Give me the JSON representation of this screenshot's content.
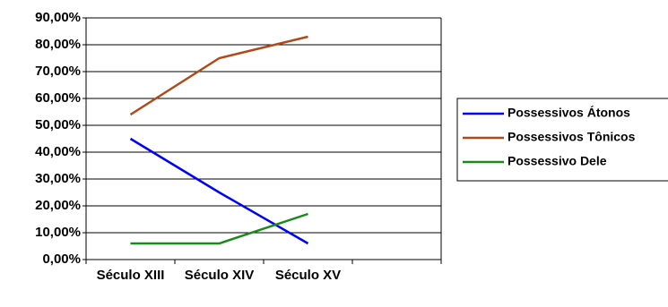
{
  "chart_data": {
    "type": "line",
    "categories": [
      "Século XIII",
      "Século XIV",
      "Século XV",
      null
    ],
    "series": [
      {
        "name": "Possessivos Átonos",
        "color": "#0000ff",
        "values": [
          45,
          25,
          6,
          null
        ]
      },
      {
        "name": "Possessivos Tônicos",
        "color": "#b04a1a",
        "values": [
          54,
          75,
          83,
          null
        ]
      },
      {
        "name": "Possessivo Dele",
        "color": "#1a8a1a",
        "values": [
          6,
          6,
          17,
          null
        ]
      }
    ],
    "ylim": [
      0,
      90
    ],
    "yticks": [
      {
        "value": 0,
        "label": "0,00%"
      },
      {
        "value": 10,
        "label": "10,00%"
      },
      {
        "value": 20,
        "label": "20,00%"
      },
      {
        "value": 30,
        "label": "30,00%"
      },
      {
        "value": 40,
        "label": "40,00%"
      },
      {
        "value": 50,
        "label": "50,00%"
      },
      {
        "value": 60,
        "label": "60,00%"
      },
      {
        "value": 70,
        "label": "70,00%"
      },
      {
        "value": 80,
        "label": "80,00%"
      },
      {
        "value": 90,
        "label": "90,00%"
      }
    ],
    "grid": true,
    "legend": "right"
  }
}
